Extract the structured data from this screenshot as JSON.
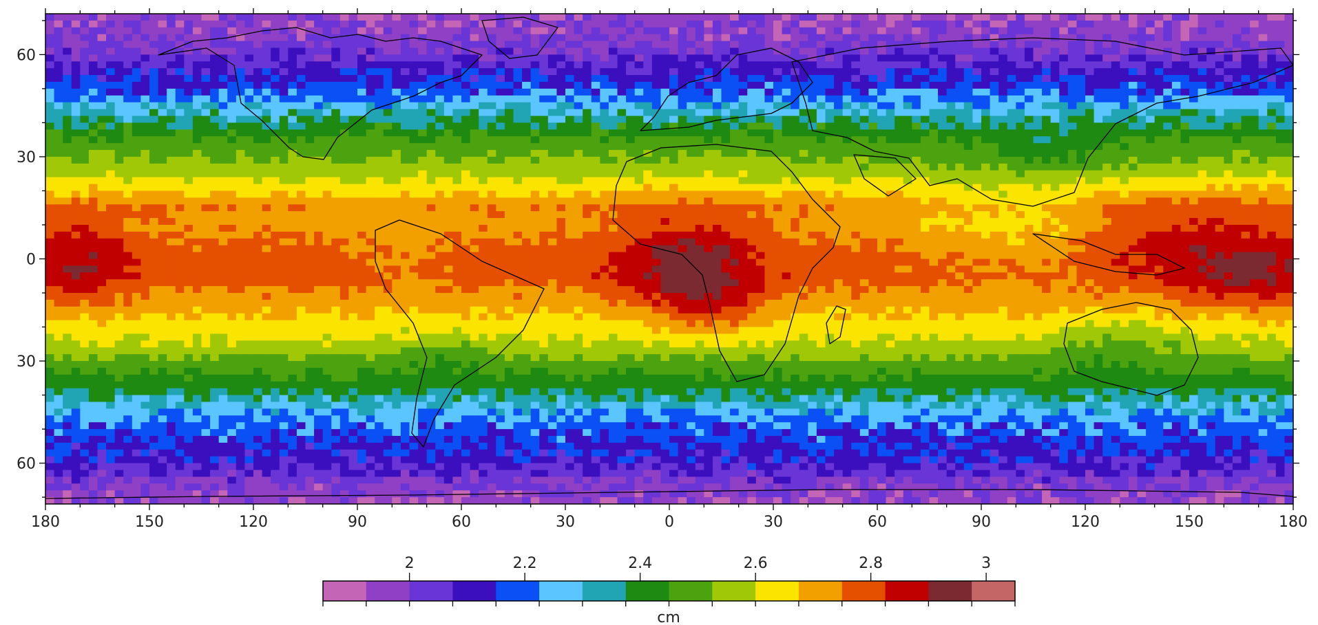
{
  "map": {
    "lon_range": [
      -180,
      180
    ],
    "lat_range": [
      -72,
      72
    ],
    "x_ticks": [
      {
        "lon": -180,
        "label": "180"
      },
      {
        "lon": -150,
        "label": "150"
      },
      {
        "lon": -120,
        "label": "120"
      },
      {
        "lon": -90,
        "label": "90"
      },
      {
        "lon": -60,
        "label": "60"
      },
      {
        "lon": -30,
        "label": "30"
      },
      {
        "lon": 0,
        "label": "0"
      },
      {
        "lon": 30,
        "label": "30"
      },
      {
        "lon": 60,
        "label": "60"
      },
      {
        "lon": 90,
        "label": "90"
      },
      {
        "lon": 120,
        "label": "120"
      },
      {
        "lon": 150,
        "label": "150"
      },
      {
        "lon": 180,
        "label": "180"
      }
    ],
    "y_ticks": [
      {
        "lat": 60,
        "label": "60"
      },
      {
        "lat": 30,
        "label": "30"
      },
      {
        "lat": 0,
        "label": "0"
      },
      {
        "lat": -30,
        "label": "30"
      },
      {
        "lat": -60,
        "label": "60"
      }
    ],
    "zonal_profile": [
      {
        "lat": -72,
        "v": 1.95
      },
      {
        "lat": -66,
        "v": 2.0
      },
      {
        "lat": -60,
        "v": 2.1
      },
      {
        "lat": -54,
        "v": 2.15
      },
      {
        "lat": -48,
        "v": 2.2
      },
      {
        "lat": -44,
        "v": 2.28
      },
      {
        "lat": -40,
        "v": 2.36
      },
      {
        "lat": -36,
        "v": 2.42
      },
      {
        "lat": -32,
        "v": 2.48
      },
      {
        "lat": -28,
        "v": 2.54
      },
      {
        "lat": -24,
        "v": 2.6
      },
      {
        "lat": -18,
        "v": 2.66
      },
      {
        "lat": -12,
        "v": 2.72
      },
      {
        "lat": -6,
        "v": 2.78
      },
      {
        "lat": 0,
        "v": 2.78
      },
      {
        "lat": 5,
        "v": 2.76
      },
      {
        "lat": 10,
        "v": 2.72
      },
      {
        "lat": 15,
        "v": 2.74
      },
      {
        "lat": 20,
        "v": 2.66
      },
      {
        "lat": 26,
        "v": 2.56
      },
      {
        "lat": 32,
        "v": 2.5
      },
      {
        "lat": 38,
        "v": 2.42
      },
      {
        "lat": 44,
        "v": 2.3
      },
      {
        "lat": 48,
        "v": 2.2
      },
      {
        "lat": 54,
        "v": 2.12
      },
      {
        "lat": 60,
        "v": 2.03
      },
      {
        "lat": 66,
        "v": 1.98
      },
      {
        "lat": 72,
        "v": 1.95
      }
    ],
    "anomalies": [
      {
        "lon": 5,
        "lat": 0,
        "rlon": 20,
        "rlat": 14,
        "dv": 0.16
      },
      {
        "lon": 12,
        "lat": -14,
        "rlon": 16,
        "rlat": 8,
        "dv": 0.12
      },
      {
        "lon": 150,
        "lat": 8,
        "rlon": 30,
        "rlat": 12,
        "dv": 0.1
      },
      {
        "lon": 170,
        "lat": -5,
        "rlon": 25,
        "rlat": 10,
        "dv": 0.12
      },
      {
        "lon": -170,
        "lat": 0,
        "rlon": 15,
        "rlat": 14,
        "dv": 0.12
      },
      {
        "lon": 100,
        "lat": 10,
        "rlon": 30,
        "rlat": 15,
        "dv": -0.08
      },
      {
        "lon": 130,
        "lat": -25,
        "rlon": 20,
        "rlat": 8,
        "dv": -0.08
      },
      {
        "lon": 110,
        "lat": 32,
        "rlon": 20,
        "rlat": 6,
        "dv": -0.08
      },
      {
        "lon": -75,
        "lat": 0,
        "rlon": 12,
        "rlat": 10,
        "dv": -0.04
      },
      {
        "lon": -65,
        "lat": -28,
        "rlon": 15,
        "rlat": 6,
        "dv": -0.06
      }
    ]
  },
  "colorbar": {
    "colors": [
      "#c565b5",
      "#9040c4",
      "#6a35d6",
      "#3b0fbd",
      "#0a50f5",
      "#5ac5ff",
      "#21a5b5",
      "#1e8a12",
      "#4ca30f",
      "#a0c806",
      "#fbe400",
      "#f2a000",
      "#e54f00",
      "#c00000",
      "#7a2a30",
      "#c46666"
    ],
    "ticks": [
      {
        "value": 2,
        "label": "2"
      },
      {
        "value": 2.2,
        "label": "2.2"
      },
      {
        "value": 2.4,
        "label": "2.4"
      },
      {
        "value": 2.6,
        "label": "2.6"
      },
      {
        "value": 2.8,
        "label": "2.8"
      },
      {
        "value": 3,
        "label": "3"
      }
    ],
    "range": [
      1.85,
      3.05
    ],
    "unit": "cm"
  }
}
